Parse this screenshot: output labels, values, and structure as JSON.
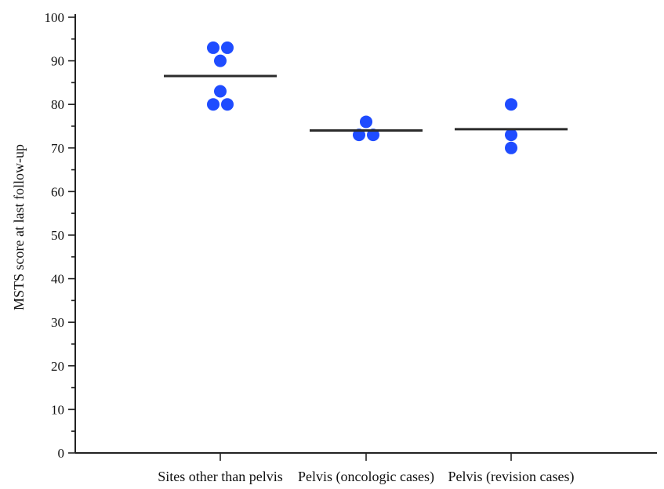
{
  "chart_data": {
    "type": "scatter",
    "title": "",
    "xlabel": "",
    "ylabel": "MSTS score at last follow-up",
    "ylim": [
      0,
      100
    ],
    "y_major_ticks": [
      0,
      10,
      20,
      30,
      40,
      50,
      60,
      70,
      80,
      90,
      100
    ],
    "y_minor_step": 5,
    "grid": false,
    "marker_color": "#1f4cff",
    "mean_line_color": "#2b2b2b",
    "categories": [
      "Sites other than pelvis",
      "Pelvis (oncologic cases)",
      "Pelvis (revision cases)"
    ],
    "groups": [
      {
        "category": "Sites other than pelvis",
        "points": [
          93,
          93,
          90,
          83,
          80,
          80
        ],
        "mean": 86.5
      },
      {
        "category": "Pelvis (oncologic cases)",
        "points": [
          76,
          73,
          73
        ],
        "mean": 74
      },
      {
        "category": "Pelvis (revision cases)",
        "points": [
          80,
          73,
          70
        ],
        "mean": 74.3
      }
    ]
  }
}
